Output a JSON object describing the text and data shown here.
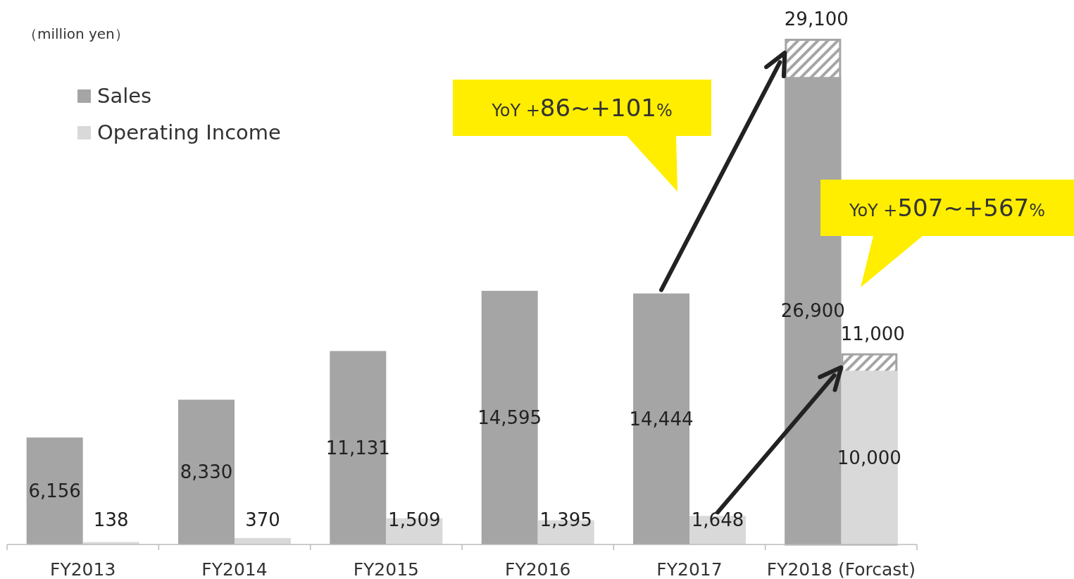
{
  "chart_data": {
    "type": "bar",
    "ylabel": "（million yen）",
    "categories": [
      "FY2013",
      "FY2014",
      "FY2015",
      "FY2016",
      "FY2017",
      "FY2018 (Forcast)"
    ],
    "series": [
      {
        "name": "Sales",
        "color": "#a5a5a5",
        "values": [
          6156,
          8330,
          11131,
          14595,
          14444,
          26900
        ],
        "value_labels": [
          "6,156",
          "8,330",
          "11,131",
          "14,595",
          "14,444",
          "26,900"
        ]
      },
      {
        "color": "#a5a5a5",
        "values": [
          null,
          null,
          null,
          null,
          null,
          29100
        ],
        "value_labels": [
          null,
          null,
          null,
          null,
          null,
          "29,100"
        ]
      },
      {
        "name": "Operating Income",
        "color": "#d9d9d9",
        "values": [
          138,
          370,
          1509,
          1395,
          1648,
          10000
        ],
        "value_labels": [
          "138",
          "370",
          "1,509",
          "1,395",
          "1,648",
          "10,000"
        ]
      },
      {
        "color": "#a5a5a5",
        "values": [
          null,
          null,
          null,
          null,
          null,
          11000
        ],
        "value_labels": [
          null,
          null,
          null,
          null,
          null,
          "11,000"
        ]
      }
    ],
    "annotations": [
      "YoY +86~+101%",
      "YoY +507~+567%"
    ],
    "legend": "top left"
  }
}
